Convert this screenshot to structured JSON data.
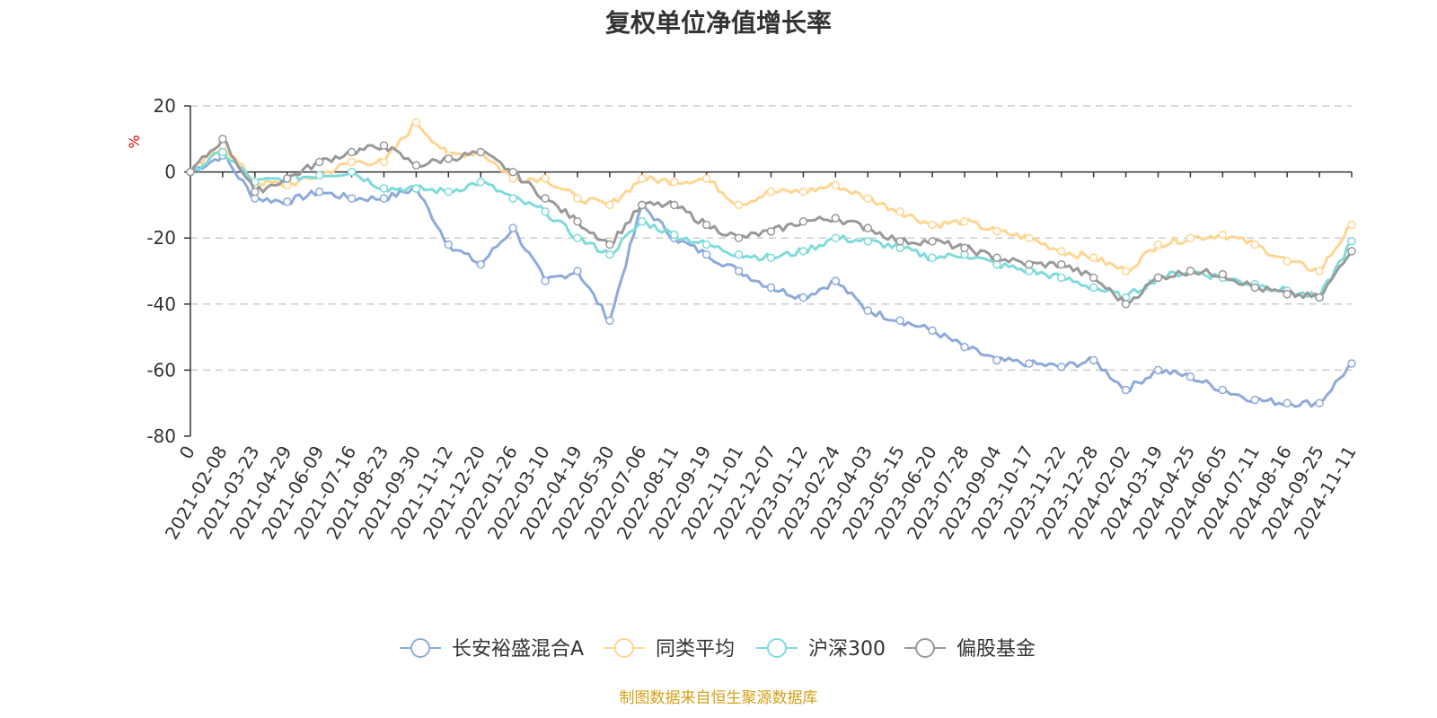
{
  "title": "复权单位净值增长率",
  "source": "制图数据来自恒生聚源数据库",
  "colors": {
    "source_text": "#d4a017",
    "ylabel": "#e60000",
    "axis": "#333333",
    "grid": "#cccccc"
  },
  "chart_data": {
    "type": "line",
    "title": "复权单位净值增长率",
    "xlabel": "",
    "ylabel": "%",
    "ylim": [
      -80,
      20
    ],
    "yticks": [
      20,
      0,
      -20,
      -40,
      -60,
      -80
    ],
    "grid": true,
    "legend_position": "bottom-center",
    "x": [
      "0",
      "2021-02-08",
      "2021-03-23",
      "2021-04-29",
      "2021-06-09",
      "2021-07-16",
      "2021-08-23",
      "2021-09-30",
      "2021-11-12",
      "2021-12-20",
      "2022-01-26",
      "2022-03-10",
      "2022-04-19",
      "2022-05-30",
      "2022-07-06",
      "2022-08-11",
      "2022-09-19",
      "2022-11-01",
      "2022-12-07",
      "2023-01-12",
      "2023-02-24",
      "2023-04-03",
      "2023-05-15",
      "2023-06-20",
      "2023-07-28",
      "2023-09-04",
      "2023-10-17",
      "2023-11-22",
      "2023-12-28",
      "2024-02-02",
      "2024-03-19",
      "2024-04-25",
      "2024-06-05",
      "2024-07-11",
      "2024-08-16",
      "2024-09-25",
      "2024-11-11"
    ],
    "series": [
      {
        "name": "长安裕盛混合A",
        "color": "#8eaadb",
        "values": [
          0,
          5,
          -8,
          -9,
          -6,
          -8,
          -8,
          -5,
          -22,
          -28,
          -17,
          -33,
          -30,
          -45,
          -10,
          -20,
          -25,
          -30,
          -35,
          -38,
          -33,
          -42,
          -45,
          -48,
          -53,
          -57,
          -58,
          -59,
          -57,
          -66,
          -60,
          -62,
          -66,
          -69,
          -70,
          -70,
          -58
        ]
      },
      {
        "name": "同类平均",
        "color": "#ffd591",
        "values": [
          0,
          8,
          -3,
          -4,
          -1,
          3,
          3,
          15,
          5,
          6,
          -2,
          -2,
          -8,
          -10,
          -2,
          -3,
          -2,
          -10,
          -6,
          -6,
          -4,
          -8,
          -12,
          -16,
          -15,
          -18,
          -20,
          -24,
          -26,
          -30,
          -22,
          -20,
          -19,
          -22,
          -27,
          -30,
          -16
        ]
      },
      {
        "name": "沪深300",
        "color": "#7fdbda",
        "values": [
          0,
          6,
          -3,
          -2,
          -1,
          0,
          -5,
          -5,
          -6,
          -3,
          -8,
          -12,
          -20,
          -25,
          -15,
          -19,
          -22,
          -25,
          -26,
          -24,
          -20,
          -21,
          -23,
          -26,
          -25,
          -28,
          -30,
          -32,
          -35,
          -38,
          -32,
          -30,
          -32,
          -34,
          -36,
          -38,
          -21
        ]
      },
      {
        "name": "偏股基金",
        "color": "#999999",
        "values": [
          0,
          10,
          -6,
          -2,
          3,
          6,
          8,
          2,
          4,
          6,
          0,
          -8,
          -15,
          -22,
          -10,
          -10,
          -16,
          -20,
          -18,
          -15,
          -14,
          -17,
          -21,
          -21,
          -23,
          -26,
          -28,
          -28,
          -32,
          -40,
          -32,
          -30,
          -31,
          -35,
          -37,
          -38,
          -24
        ]
      }
    ]
  }
}
